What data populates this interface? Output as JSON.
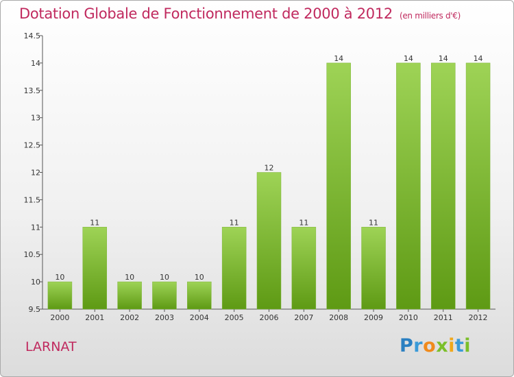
{
  "chart_data": {
    "type": "bar",
    "title": "Dotation Globale de Fonctionnement de 2000 à 2012",
    "subtitle": "(en milliers d'€)",
    "categories": [
      "2000",
      "2001",
      "2002",
      "2003",
      "2004",
      "2005",
      "2006",
      "2007",
      "2008",
      "2009",
      "2010",
      "2011",
      "2012"
    ],
    "values": [
      10,
      11,
      10,
      10,
      10,
      11,
      12,
      11,
      14,
      11,
      14,
      14,
      14
    ],
    "value_labels": [
      "10",
      "11",
      "10",
      "10",
      "10",
      "11",
      "12",
      "11",
      "14",
      "11",
      "14",
      "14",
      "14"
    ],
    "ylim": [
      9.5,
      14.5
    ],
    "yticks": [
      9.5,
      10,
      10.5,
      11,
      11.5,
      12,
      12.5,
      13,
      13.5,
      14,
      14.5
    ],
    "ytick_labels": [
      "9.5",
      "10",
      "10.5",
      "11",
      "11.5",
      "12",
      "12.5",
      "13",
      "13.5",
      "14",
      "14.5"
    ],
    "grid": false,
    "bar_color": "#8cc63f"
  },
  "commune": "LARNAT",
  "logo": {
    "letters": [
      "P",
      "r",
      "o",
      "x",
      "i",
      "t",
      "i"
    ]
  }
}
